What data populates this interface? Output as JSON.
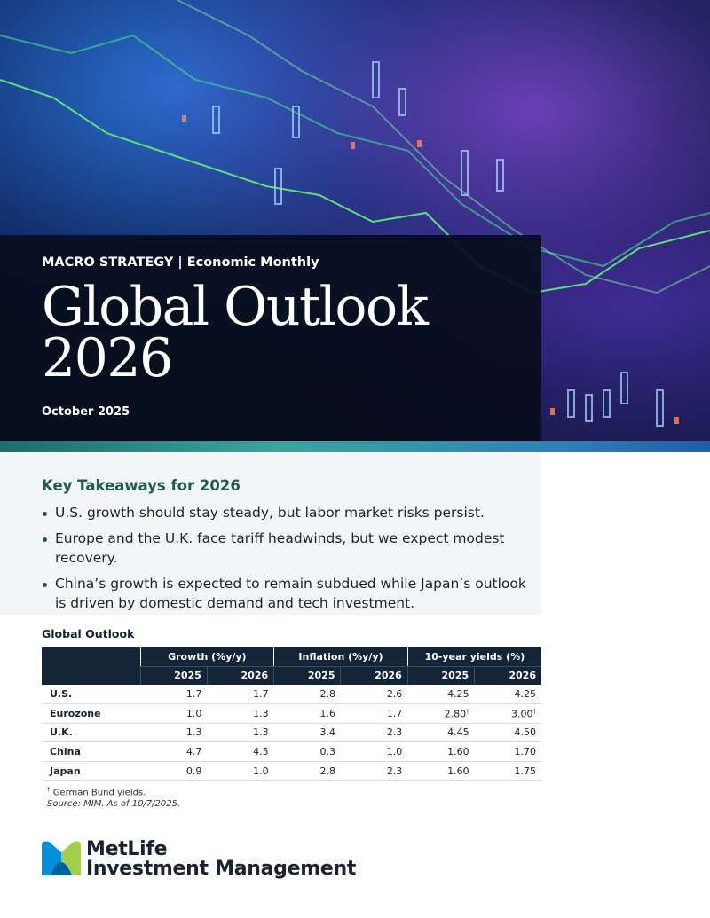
{
  "header": {
    "series": "MACRO STRATEGY | Economic Monthly",
    "title": [
      "Global Outlook",
      "2026"
    ],
    "date": "October 2025"
  },
  "takeaways": {
    "title": "Key Takeaways for 2026",
    "items": [
      "U.S. growth should stay steady, but labor market risks persist.",
      "Europe and the U.K. face tariff headwinds, but we expect modest recovery.",
      "China’s growth is expected to remain subdued while Japan’s outlook is driven by domestic demand and tech investment."
    ]
  },
  "table": {
    "title": "Global Outlook",
    "groups": [
      "Growth (%y/y)",
      "Inflation (%y/y)",
      "10-year yields (%)"
    ],
    "years": [
      "2025",
      "2026",
      "2025",
      "2026",
      "2025",
      "2026"
    ],
    "rows": [
      [
        "U.S.",
        "1.7",
        "1.7",
        "2.8",
        "2.6",
        "4.25",
        "4.25"
      ],
      [
        "Eurozone",
        "1.0",
        "1.3",
        "1.6",
        "1.7",
        {
          "value": "2.80",
          "note": "†"
        },
        {
          "value": "3.00",
          "note": "†"
        }
      ],
      [
        "U.K.",
        "1.3",
        "1.3",
        "3.4",
        "2.3",
        "4.45",
        "4.50"
      ],
      [
        "China",
        "4.7",
        "4.5",
        "0.3",
        "1.0",
        "1.60",
        "1.70"
      ],
      [
        "Japan",
        "0.9",
        "1.0",
        "2.8",
        "2.3",
        "1.60",
        "1.75"
      ]
    ],
    "footnote": {
      "mark": "†",
      "text": "German Bund yields."
    },
    "source": "Source: MIM. As of 10/7/2025."
  },
  "logo": {
    "line1": "MetLife",
    "line2": "Investment Management"
  }
}
